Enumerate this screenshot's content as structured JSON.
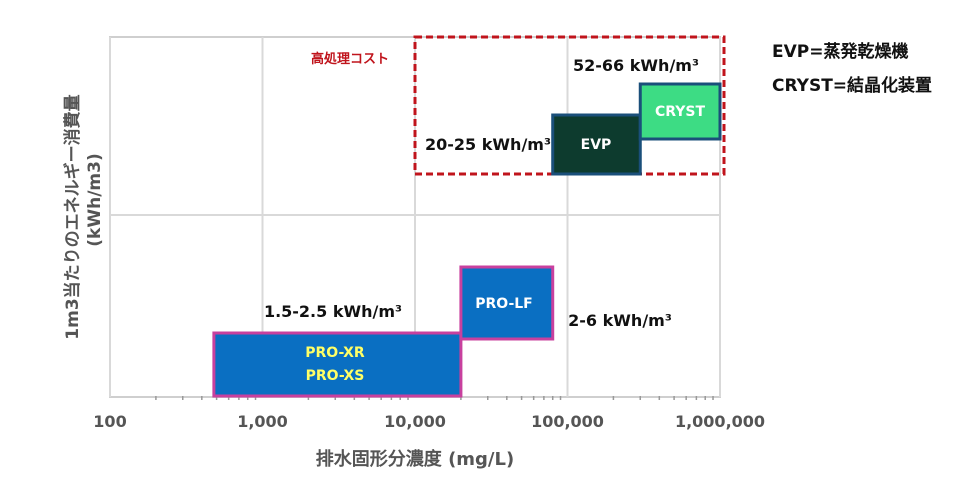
{
  "legend": {
    "evp": "EVP=蒸発乾燥機",
    "cryst": "CRYST=結晶化装置"
  },
  "chart_data": {
    "type": "range-bar",
    "title": "",
    "xlabel": "排水固形分濃度 (mg/L)",
    "ylabel_line1": "1m3当たりのエネルギー消費量",
    "ylabel_line2": "(kWh/m3)",
    "x_scale": "log",
    "xlim": [
      100,
      1000000
    ],
    "x_ticks": [
      {
        "value": 100,
        "label": "100"
      },
      {
        "value": 1000,
        "label": "1,000"
      },
      {
        "value": 10000,
        "label": "10,000"
      },
      {
        "value": 100000,
        "label": "100,000"
      },
      {
        "value": 1000000,
        "label": "1,000,000"
      }
    ],
    "grid": true,
    "y_tick_labels": false,
    "bars": [
      {
        "label": "PRO-XR\nPRO-XS",
        "x_start": 480,
        "x_end": 20000,
        "energy": "1.5-2.5 kWh/m³",
        "fill": "#0a6fc2",
        "border": "#c8409e",
        "text_color": "#ffff66"
      },
      {
        "label": "PRO-LF",
        "x_start": 20000,
        "x_end": 80000,
        "energy": "2-6 kWh/m³",
        "fill": "#0a6fc2",
        "border": "#c8409e",
        "text_color": "#ffffff"
      },
      {
        "label": "EVP",
        "x_start": 80000,
        "x_end": 300000,
        "energy": "20-25 kWh/m³",
        "fill": "#0d3b2e",
        "border": "#1a4f7a",
        "text_color": "#ffffff"
      },
      {
        "label": "CRYST",
        "x_start": 300000,
        "x_end": 1000000,
        "energy": "52-66 kWh/m³",
        "fill": "#3ddc84",
        "border": "#1a4f7a",
        "text_color": "#ffffff"
      }
    ],
    "region": {
      "label": "高処理コスト",
      "x_start": 10000,
      "x_end": 1000000,
      "color": "#c0141c"
    }
  }
}
